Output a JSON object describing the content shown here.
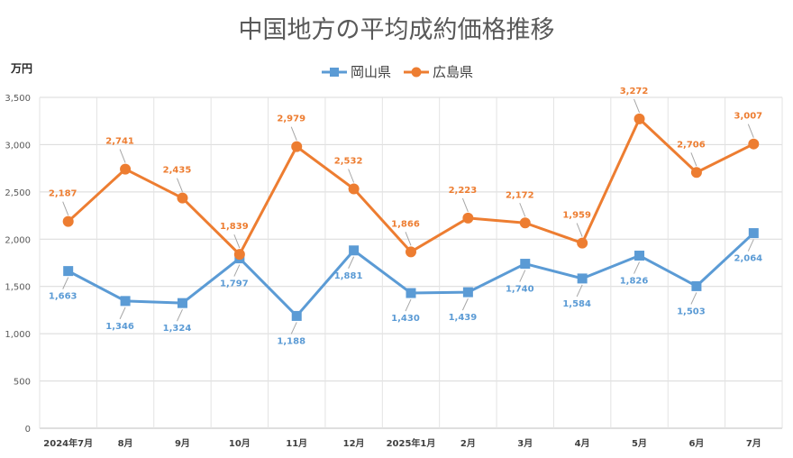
{
  "chart_data": {
    "type": "line",
    "title": "中国地方の平均成約価格推移",
    "ylabel": "万円",
    "ylim": [
      0,
      3500
    ],
    "ytick_step": 500,
    "y_tick_labels": [
      "0",
      "500",
      "1,000",
      "1,500",
      "2,000",
      "2,500",
      "3,000",
      "3,500"
    ],
    "grid": true,
    "legend_position": "top-center",
    "categories": [
      "2024年7月",
      "8月",
      "9月",
      "10月",
      "11月",
      "12月",
      "2025年1月",
      "2月",
      "3月",
      "4月",
      "5月",
      "6月",
      "7月"
    ],
    "series": [
      {
        "name": "岡山県",
        "color": "#5B9BD5",
        "marker": "square",
        "label_position": "below",
        "values": [
          1663,
          1346,
          1324,
          1797,
          1188,
          1881,
          1430,
          1439,
          1740,
          1584,
          1826,
          1503,
          2064
        ],
        "labels": [
          "1,663",
          "1,346",
          "1,324",
          "1,797",
          "1,188",
          "1,881",
          "1,430",
          "1,439",
          "1,740",
          "1,584",
          "1,826",
          "1,503",
          "2,064"
        ]
      },
      {
        "name": "広島県",
        "color": "#ED7D31",
        "marker": "circle",
        "label_position": "above",
        "values": [
          2187,
          2741,
          2435,
          1839,
          2979,
          2532,
          1866,
          2223,
          2172,
          1959,
          3272,
          2706,
          3007
        ],
        "labels": [
          "2,187",
          "2,741",
          "2,435",
          "1,839",
          "2,979",
          "2,532",
          "1,866",
          "2,223",
          "2,172",
          "1,959",
          "3,272",
          "2,706",
          "3,007"
        ]
      }
    ]
  }
}
